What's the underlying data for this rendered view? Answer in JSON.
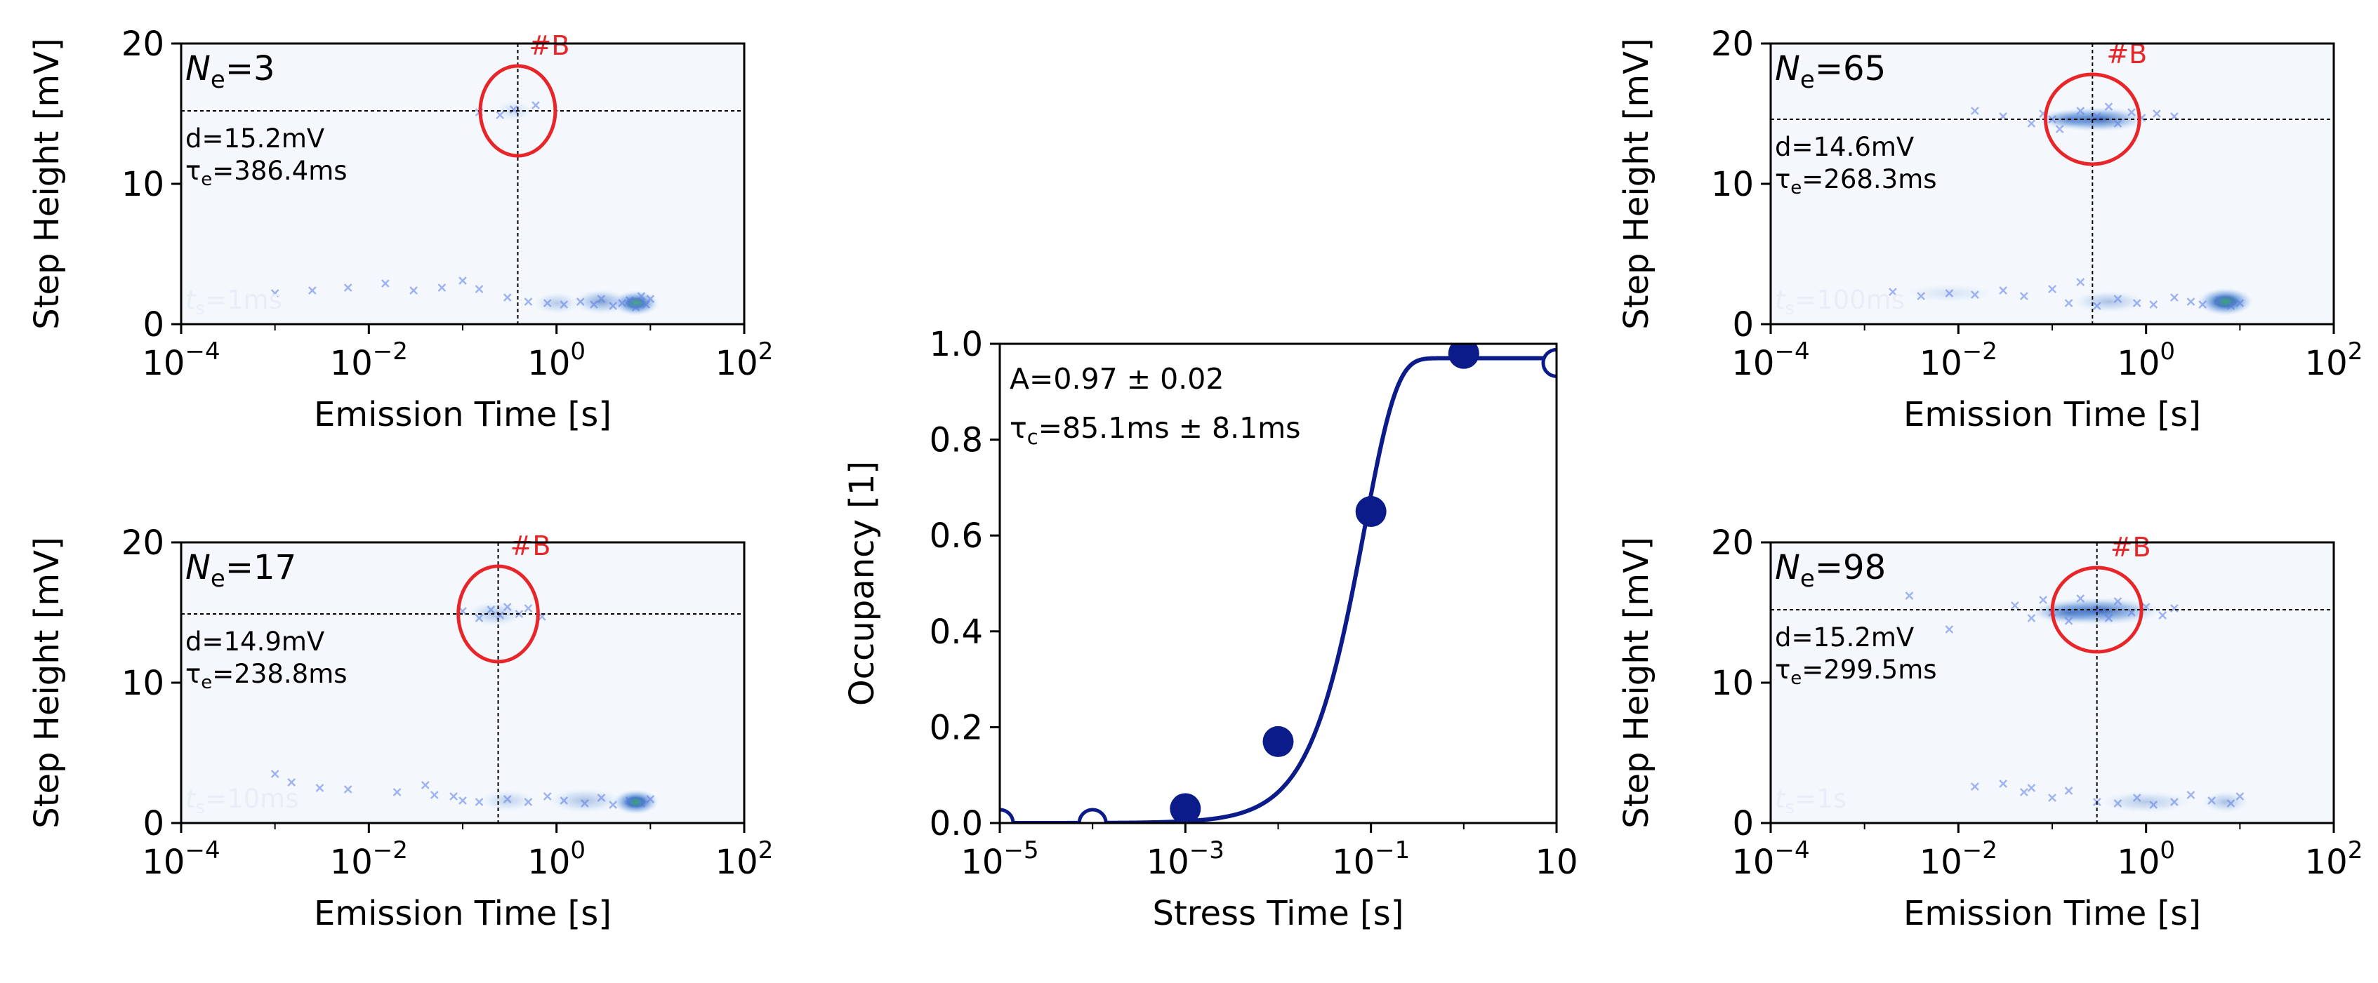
{
  "colors": {
    "panel_bg": "#f4f8fd",
    "marker": "#5b7be6",
    "density_dark": "#2a62b8",
    "density_green": "#2ca25f",
    "highlight": "#e8262a",
    "fit": "#0c1b8a",
    "axis": "#000000",
    "faint_text": "#e8eef8"
  },
  "chart_data": [
    {
      "type": "scatter",
      "panel": "top-left",
      "xlabel": "Emission Time  [s]",
      "ylabel": "Step Height  [mV]",
      "xscale": "log",
      "xlim": [
        0.0001,
        100
      ],
      "ylim": [
        0,
        20
      ],
      "xticks": [
        {
          "value": 0.0001,
          "base": "10",
          "exp": "−4"
        },
        {
          "value": 0.01,
          "base": "10",
          "exp": "−2"
        },
        {
          "value": 1,
          "base": "10",
          "exp": "0"
        },
        {
          "value": 100,
          "base": "10",
          "exp": "2"
        }
      ],
      "yticks": [
        {
          "value": 0,
          "label": "0"
        },
        {
          "value": 10,
          "label": "10"
        },
        {
          "value": 20,
          "label": "20"
        }
      ],
      "n_label": {
        "sym": "N",
        "sub": "e",
        "value": "=3"
      },
      "d_text": "d=15.2mV",
      "tau": {
        "sym": "τ",
        "sub": "e",
        "value": "=386.4ms"
      },
      "stress_label": {
        "sym": "t",
        "sub": "s",
        "value": "=1ms"
      },
      "cluster_label": "#B",
      "cluster": {
        "x": 0.3864,
        "y": 15.2,
        "rx_dec": 0.8,
        "ry": 1.6
      },
      "vline_x": 0.3864,
      "hline_y": 15.2,
      "points": [
        [
          0.001,
          2.2
        ],
        [
          0.0025,
          2.4
        ],
        [
          0.006,
          2.6
        ],
        [
          0.015,
          2.9
        ],
        [
          0.03,
          2.4
        ],
        [
          0.06,
          2.6
        ],
        [
          0.1,
          3.1
        ],
        [
          0.15,
          2.5
        ],
        [
          0.3,
          1.9
        ],
        [
          0.5,
          1.6
        ],
        [
          0.8,
          1.5
        ],
        [
          1.2,
          1.4
        ],
        [
          1.8,
          1.6
        ],
        [
          2.5,
          1.4
        ],
        [
          3,
          1.8
        ],
        [
          4,
          1.3
        ],
        [
          5,
          1.5
        ],
        [
          6,
          1.7
        ],
        [
          7,
          1.2
        ],
        [
          8,
          2.0
        ],
        [
          9,
          1.4
        ],
        [
          10,
          1.8
        ],
        [
          0.35,
          15.3
        ],
        [
          0.25,
          14.9
        ],
        [
          0.6,
          15.6
        ],
        [
          0.15,
          15.1
        ]
      ],
      "density": [
        {
          "x": 7,
          "y": 1.5,
          "rx": 0.25,
          "ry": 0.9,
          "o": 0.85,
          "g": true
        },
        {
          "x": 3,
          "y": 1.6,
          "rx": 0.3,
          "ry": 0.9,
          "o": 0.55
        },
        {
          "x": 1,
          "y": 1.5,
          "rx": 0.25,
          "ry": 0.8,
          "o": 0.3
        },
        {
          "x": 0.35,
          "y": 15.2,
          "rx": 0.2,
          "ry": 0.8,
          "o": 0.2
        }
      ]
    },
    {
      "type": "scatter",
      "panel": "bottom-left",
      "xlabel": "Emission Time  [s]",
      "ylabel": "Step Height  [mV]",
      "xscale": "log",
      "xlim": [
        0.0001,
        100
      ],
      "ylim": [
        0,
        20
      ],
      "xticks": [
        {
          "value": 0.0001,
          "base": "10",
          "exp": "−4"
        },
        {
          "value": 0.01,
          "base": "10",
          "exp": "−2"
        },
        {
          "value": 1,
          "base": "10",
          "exp": "0"
        },
        {
          "value": 100,
          "base": "10",
          "exp": "2"
        }
      ],
      "yticks": [
        {
          "value": 0,
          "label": "0"
        },
        {
          "value": 10,
          "label": "10"
        },
        {
          "value": 20,
          "label": "20"
        }
      ],
      "n_label": {
        "sym": "N",
        "sub": "e",
        "value": "=17"
      },
      "d_text": "d=14.9mV",
      "tau": {
        "sym": "τ",
        "sub": "e",
        "value": "=238.8ms"
      },
      "stress_label": {
        "sym": "t",
        "sub": "s",
        "value": "=10ms"
      },
      "cluster_label": "#B",
      "cluster": {
        "x": 0.2388,
        "y": 14.9,
        "rx_dec": 0.85,
        "ry": 1.7
      },
      "vline_x": 0.2388,
      "hline_y": 14.9,
      "points": [
        [
          0.001,
          3.5
        ],
        [
          0.0015,
          2.9
        ],
        [
          0.003,
          2.5
        ],
        [
          0.006,
          2.4
        ],
        [
          0.02,
          2.2
        ],
        [
          0.04,
          2.7
        ],
        [
          0.05,
          2.0
        ],
        [
          0.08,
          1.9
        ],
        [
          0.1,
          1.6
        ],
        [
          0.15,
          1.5
        ],
        [
          0.3,
          1.7
        ],
        [
          0.5,
          1.5
        ],
        [
          0.8,
          1.9
        ],
        [
          1.2,
          1.6
        ],
        [
          2,
          1.4
        ],
        [
          3,
          1.8
        ],
        [
          4,
          1.3
        ],
        [
          6,
          1.6
        ],
        [
          8,
          1.4
        ],
        [
          10,
          1.7
        ],
        [
          0.1,
          15.1
        ],
        [
          0.15,
          14.6
        ],
        [
          0.2,
          15.2
        ],
        [
          0.25,
          14.8
        ],
        [
          0.3,
          15.4
        ],
        [
          0.4,
          14.9
        ],
        [
          0.5,
          15.3
        ],
        [
          0.7,
          14.7
        ]
      ],
      "density": [
        {
          "x": 7,
          "y": 1.5,
          "rx": 0.25,
          "ry": 0.9,
          "o": 0.9,
          "g": true
        },
        {
          "x": 2,
          "y": 1.6,
          "rx": 0.4,
          "ry": 0.9,
          "o": 0.35
        },
        {
          "x": 0.3,
          "y": 1.6,
          "rx": 0.3,
          "ry": 0.8,
          "o": 0.25
        },
        {
          "x": 0.22,
          "y": 14.9,
          "rx": 0.3,
          "ry": 0.9,
          "o": 0.35
        }
      ]
    },
    {
      "type": "line",
      "panel": "center",
      "xlabel": "Stress Time  [s]",
      "ylabel": "Occupancy  [1]",
      "xscale": "log",
      "xlim": [
        1e-05,
        10
      ],
      "ylim": [
        0,
        1
      ],
      "xticks": [
        {
          "value": 1e-05,
          "base": "10",
          "exp": "−5"
        },
        {
          "value": 0.001,
          "base": "10",
          "exp": "−3"
        },
        {
          "value": 0.1,
          "base": "10",
          "exp": "−1"
        },
        {
          "value": 10,
          "base": "10",
          "exp": ""
        }
      ],
      "yticks": [
        {
          "value": 0,
          "label": "0.0"
        },
        {
          "value": 0.2,
          "label": "0.2"
        },
        {
          "value": 0.4,
          "label": "0.4"
        },
        {
          "value": 0.6,
          "label": "0.6"
        },
        {
          "value": 0.8,
          "label": "0.8"
        },
        {
          "value": 1,
          "label": "1.0"
        }
      ],
      "amp_text": "A=0.97 ± 0.02",
      "tau": {
        "sym": "τ",
        "sub": "c",
        "value": "=85.1ms ± 8.1ms"
      },
      "fit": {
        "A": 0.97,
        "tau": 0.0851,
        "n": 1.25
      },
      "filled_points": [
        [
          0.001,
          0.03
        ],
        [
          0.01,
          0.17
        ],
        [
          0.1,
          0.65
        ],
        [
          1,
          0.98
        ]
      ],
      "open_points": [
        [
          1e-05,
          0.0
        ],
        [
          0.0001,
          0.0
        ],
        [
          10,
          0.96
        ]
      ]
    },
    {
      "type": "scatter",
      "panel": "top-right",
      "xlabel": "Emission Time  [s]",
      "ylabel": "Step Height  [mV]",
      "xscale": "log",
      "xlim": [
        0.0001,
        100
      ],
      "ylim": [
        0,
        20
      ],
      "xticks": [
        {
          "value": 0.0001,
          "base": "10",
          "exp": "−4"
        },
        {
          "value": 0.01,
          "base": "10",
          "exp": "−2"
        },
        {
          "value": 1,
          "base": "10",
          "exp": "0"
        },
        {
          "value": 100,
          "base": "10",
          "exp": "2"
        }
      ],
      "yticks": [
        {
          "value": 0,
          "label": "0"
        },
        {
          "value": 10,
          "label": "10"
        },
        {
          "value": 20,
          "label": "20"
        }
      ],
      "n_label": {
        "sym": "N",
        "sub": "e",
        "value": "=65"
      },
      "d_text": "d=14.6mV",
      "tau": {
        "sym": "τ",
        "sub": "e",
        "value": "=268.3ms"
      },
      "stress_label": {
        "sym": "t",
        "sub": "s",
        "value": "=100ms"
      },
      "cluster_label": "#B",
      "cluster": {
        "x": 0.2683,
        "y": 14.6,
        "rx_dec": 1.0,
        "ry": 1.6
      },
      "vline_x": 0.2683,
      "hline_y": 14.6,
      "points": [
        [
          0.002,
          2.3
        ],
        [
          0.004,
          2.0
        ],
        [
          0.008,
          2.2
        ],
        [
          0.015,
          2.1
        ],
        [
          0.03,
          2.4
        ],
        [
          0.05,
          2.0
        ],
        [
          0.1,
          2.5
        ],
        [
          0.15,
          1.5
        ],
        [
          0.2,
          3.0
        ],
        [
          0.3,
          1.3
        ],
        [
          0.5,
          1.8
        ],
        [
          0.8,
          1.5
        ],
        [
          1.2,
          1.4
        ],
        [
          2,
          1.9
        ],
        [
          3,
          1.6
        ],
        [
          4,
          1.4
        ],
        [
          6,
          1.7
        ],
        [
          8,
          1.3
        ],
        [
          10,
          1.5
        ],
        [
          0.015,
          15.2
        ],
        [
          0.03,
          14.8
        ],
        [
          0.06,
          14.3
        ],
        [
          0.08,
          15.0
        ],
        [
          0.1,
          14.6
        ],
        [
          0.12,
          13.9
        ],
        [
          0.2,
          15.2
        ],
        [
          0.3,
          14.8
        ],
        [
          0.4,
          15.5
        ],
        [
          0.5,
          14.3
        ],
        [
          0.7,
          15.1
        ],
        [
          0.9,
          14.7
        ],
        [
          1.3,
          15.0
        ],
        [
          2,
          14.8
        ]
      ],
      "density": [
        {
          "x": 7,
          "y": 1.6,
          "rx": 0.3,
          "ry": 1.0,
          "o": 0.9,
          "g": true
        },
        {
          "x": 0.3,
          "y": 14.6,
          "rx": 0.55,
          "ry": 0.9,
          "o": 0.95
        },
        {
          "x": 0.15,
          "y": 14.6,
          "rx": 0.35,
          "ry": 0.7,
          "o": 0.6
        },
        {
          "x": 0.4,
          "y": 1.6,
          "rx": 0.4,
          "ry": 0.8,
          "o": 0.35
        },
        {
          "x": 0.008,
          "y": 2.2,
          "rx": 0.5,
          "ry": 0.7,
          "o": 0.15
        }
      ]
    },
    {
      "type": "scatter",
      "panel": "bottom-right",
      "xlabel": "Emission Time  [s]",
      "ylabel": "Step Height  [mV]",
      "xscale": "log",
      "xlim": [
        0.0001,
        100
      ],
      "ylim": [
        0,
        20
      ],
      "xticks": [
        {
          "value": 0.0001,
          "base": "10",
          "exp": "−4"
        },
        {
          "value": 0.01,
          "base": "10",
          "exp": "−2"
        },
        {
          "value": 1,
          "base": "10",
          "exp": "0"
        },
        {
          "value": 100,
          "base": "10",
          "exp": "2"
        }
      ],
      "yticks": [
        {
          "value": 0,
          "label": "0"
        },
        {
          "value": 10,
          "label": "10"
        },
        {
          "value": 20,
          "label": "20"
        }
      ],
      "n_label": {
        "sym": "N",
        "sub": "e",
        "value": "=98"
      },
      "d_text": "d=15.2mV",
      "tau": {
        "sym": "τ",
        "sub": "e",
        "value": "=299.5ms"
      },
      "stress_label": {
        "sym": "t",
        "sub": "s",
        "value": "=1s"
      },
      "cluster_label": "#B",
      "cluster": {
        "x": 0.2995,
        "y": 15.2,
        "rx_dec": 0.95,
        "ry": 1.5
      },
      "vline_x": 0.2995,
      "hline_y": 15.2,
      "points": [
        [
          0.003,
          16.2
        ],
        [
          0.008,
          13.8
        ],
        [
          0.015,
          2.6
        ],
        [
          0.03,
          2.8
        ],
        [
          0.05,
          2.2
        ],
        [
          0.06,
          2.5
        ],
        [
          0.1,
          1.8
        ],
        [
          0.15,
          2.3
        ],
        [
          0.3,
          1.5
        ],
        [
          0.5,
          1.4
        ],
        [
          0.8,
          1.8
        ],
        [
          1.2,
          1.3
        ],
        [
          2,
          1.5
        ],
        [
          3,
          2.0
        ],
        [
          5,
          1.6
        ],
        [
          8,
          1.4
        ],
        [
          10,
          1.9
        ],
        [
          0.04,
          15.5
        ],
        [
          0.06,
          14.6
        ],
        [
          0.08,
          15.9
        ],
        [
          0.1,
          15.0
        ],
        [
          0.15,
          14.4
        ],
        [
          0.2,
          16.0
        ],
        [
          0.3,
          15.2
        ],
        [
          0.4,
          14.6
        ],
        [
          0.5,
          15.8
        ],
        [
          0.7,
          15.0
        ],
        [
          1,
          15.4
        ],
        [
          1.5,
          14.8
        ],
        [
          2,
          15.3
        ]
      ],
      "density": [
        {
          "x": 0.3,
          "y": 15.1,
          "rx": 0.7,
          "ry": 1.0,
          "o": 0.95
        },
        {
          "x": 0.15,
          "y": 15.0,
          "rx": 0.4,
          "ry": 0.8,
          "o": 0.6
        },
        {
          "x": 1.0,
          "y": 1.5,
          "rx": 0.5,
          "ry": 0.8,
          "o": 0.3
        },
        {
          "x": 7,
          "y": 1.5,
          "rx": 0.25,
          "ry": 0.8,
          "o": 0.35
        }
      ]
    }
  ]
}
